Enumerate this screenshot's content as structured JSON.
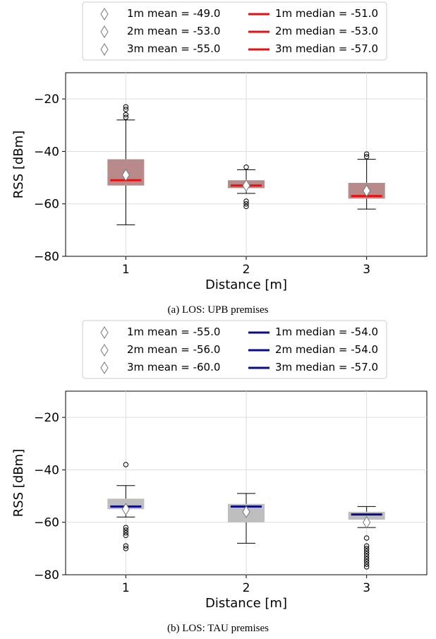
{
  "chart_data": [
    {
      "type": "box",
      "caption": "(a) LOS: UPB premises",
      "xlabel": "Distance [m]",
      "ylabel": "RSS [dBm]",
      "categories": [
        "1",
        "2",
        "3"
      ],
      "ylim": [
        -80,
        -10
      ],
      "yticks": [
        -80,
        -60,
        -40,
        -20
      ],
      "ytick_labels": [
        "−80",
        "−60",
        "−40",
        "−20"
      ],
      "grid": true,
      "legend_position": "top",
      "box_color": "#b88a8a",
      "median_color": "#e81010",
      "boxes": [
        {
          "category": "1",
          "q1": -53,
          "q3": -43,
          "median": -51,
          "mean": -49,
          "whisker_low": -68,
          "whisker_high": -28,
          "outliers": [
            -23,
            -24,
            -26,
            -27
          ]
        },
        {
          "category": "2",
          "q1": -54,
          "q3": -51,
          "median": -53,
          "mean": -53,
          "whisker_low": -56,
          "whisker_high": -47,
          "outliers": [
            -46,
            -59,
            -60,
            -61
          ]
        },
        {
          "category": "3",
          "q1": -58,
          "q3": -52,
          "median": -57,
          "mean": -55,
          "whisker_low": -62,
          "whisker_high": -43,
          "outliers": [
            -41,
            -42
          ]
        }
      ],
      "legend": {
        "means": [
          "1m mean = -49.0",
          "2m mean = -53.0",
          "3m mean = -55.0"
        ],
        "medians": [
          "1m median = -51.0",
          "2m median = -53.0",
          "3m median = -57.0"
        ]
      }
    },
    {
      "type": "box",
      "caption": "(b) LOS: TAU premises",
      "xlabel": "Distance [m]",
      "ylabel": "RSS [dBm]",
      "categories": [
        "1",
        "2",
        "3"
      ],
      "ylim": [
        -80,
        -10
      ],
      "yticks": [
        -80,
        -60,
        -40,
        -20
      ],
      "ytick_labels": [
        "−80",
        "−60",
        "−40",
        "−20"
      ],
      "grid": true,
      "legend_position": "top",
      "box_color": "#bebebe",
      "median_color": "#0a0a8c",
      "boxes": [
        {
          "category": "1",
          "q1": -55,
          "q3": -51,
          "median": -54,
          "mean": -55,
          "whisker_low": -58,
          "whisker_high": -46,
          "outliers": [
            -38,
            -62,
            -63,
            -64,
            -65,
            -69,
            -70
          ]
        },
        {
          "category": "2",
          "q1": -60,
          "q3": -53,
          "median": -54,
          "mean": -56,
          "whisker_low": -68,
          "whisker_high": -49,
          "outliers": []
        },
        {
          "category": "3",
          "q1": -59,
          "q3": -56,
          "median": -57,
          "mean": -60,
          "whisker_low": -62,
          "whisker_high": -54,
          "outliers": [
            -66,
            -69,
            -70,
            -71,
            -72,
            -73,
            -74,
            -75,
            -76,
            -77
          ]
        }
      ],
      "legend": {
        "means": [
          "1m mean = -55.0",
          "2m mean = -56.0",
          "3m mean = -60.0"
        ],
        "medians": [
          "1m median = -54.0",
          "2m median = -54.0",
          "3m median = -57.0"
        ]
      }
    }
  ]
}
